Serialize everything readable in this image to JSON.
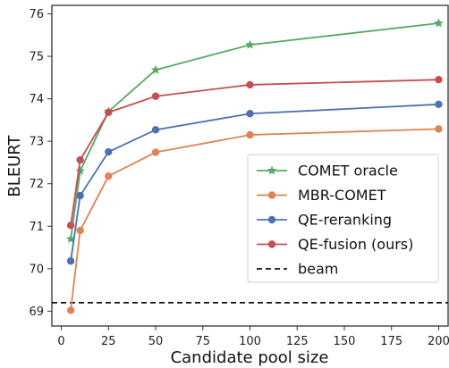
{
  "chart_data": {
    "type": "line",
    "title": "",
    "xlabel": "Candidate pool size",
    "ylabel": "BLEURT",
    "xlim": [
      -5,
      205
    ],
    "ylim": [
      68.65,
      76.2
    ],
    "x_ticks": [
      0,
      25,
      50,
      75,
      100,
      125,
      150,
      175,
      200
    ],
    "y_ticks": [
      69,
      70,
      71,
      72,
      73,
      74,
      75,
      76
    ],
    "grid": false,
    "legend_position": "center-right",
    "series": [
      {
        "name": "COMET oracle",
        "color": "#55a868",
        "marker": "star",
        "x": [
          5,
          10,
          25,
          50,
          100,
          200
        ],
        "y": [
          70.7,
          72.3,
          73.7,
          74.68,
          75.27,
          75.78
        ]
      },
      {
        "name": "MBR-COMET",
        "color": "#dd8452",
        "marker": "circle",
        "x": [
          5,
          10,
          25,
          50,
          100,
          200
        ],
        "y": [
          69.02,
          70.9,
          72.18,
          72.74,
          73.15,
          73.29
        ]
      },
      {
        "name": "QE-reranking",
        "color": "#4c72b0",
        "marker": "circle",
        "x": [
          5,
          10,
          25,
          50,
          100,
          200
        ],
        "y": [
          70.18,
          71.72,
          72.75,
          73.27,
          73.65,
          73.87
        ]
      },
      {
        "name": "QE-fusion (ours)",
        "color": "#c44e52",
        "marker": "circle",
        "x": [
          5,
          10,
          25,
          50,
          100,
          200
        ],
        "y": [
          71.02,
          72.56,
          73.68,
          74.06,
          74.33,
          74.45
        ]
      }
    ],
    "baseline": {
      "name": "beam",
      "value": 69.2,
      "color": "#111111",
      "style": "dashed"
    }
  }
}
